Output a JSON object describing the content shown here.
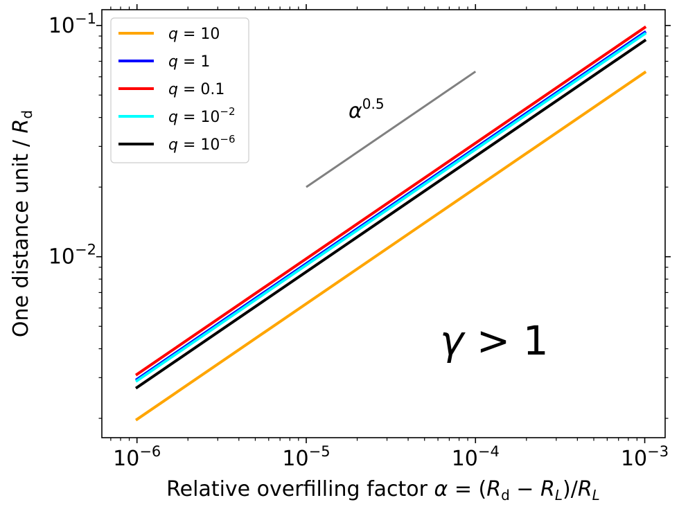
{
  "chart_data": {
    "type": "line",
    "xscale": "log",
    "yscale": "log",
    "xlim": [
      6.2e-07,
      0.00132
    ],
    "ylim": [
      0.00165,
      0.117
    ],
    "xticks": [
      {
        "value": 1e-06,
        "base": "10",
        "exp": "−6"
      },
      {
        "value": 1e-05,
        "base": "10",
        "exp": "−5"
      },
      {
        "value": 0.0001,
        "base": "10",
        "exp": "−4"
      },
      {
        "value": 0.001,
        "base": "10",
        "exp": "−3"
      }
    ],
    "yticks": [
      {
        "value": 0.01,
        "base": "10",
        "exp": "−2"
      },
      {
        "value": 0.1,
        "base": "10",
        "exp": "−1"
      }
    ],
    "xlabel": {
      "prefix": "Relative overfilling factor ",
      "alpha": "α",
      "eq": " = (",
      "R1": "R",
      "d1": "d",
      "minus": " − ",
      "R2": "R",
      "L2": "L",
      "close": ")/",
      "R3": "R",
      "L3": "L"
    },
    "ylabel": {
      "text": "One distance unit / ",
      "R": "R",
      "sub": "d"
    },
    "legend_position": "upper left",
    "series": [
      {
        "name": "q = 10",
        "legend": {
          "q": "q",
          "eq": " = ",
          "val": "10",
          "exp": ""
        },
        "color": "#ffa500",
        "x": [
          1e-06,
          0.001
        ],
        "y": [
          0.00198,
          0.0626
        ]
      },
      {
        "name": "q = 1",
        "legend": {
          "q": "q",
          "eq": " = ",
          "val": "1",
          "exp": ""
        },
        "color": "#0000ff",
        "x": [
          1e-06,
          0.001
        ],
        "y": [
          0.00295,
          0.0934
        ]
      },
      {
        "name": "q = 0.1",
        "legend": {
          "q": "q",
          "eq": " = ",
          "val": "0.1",
          "exp": ""
        },
        "color": "#ff0000",
        "x": [
          1e-06,
          0.001
        ],
        "y": [
          0.0031,
          0.098
        ]
      },
      {
        "name": "q = 10^-2",
        "legend": {
          "q": "q",
          "eq": " = ",
          "val": "10",
          "exp": "−2"
        },
        "color": "#00ffff",
        "x": [
          1e-06,
          0.001
        ],
        "y": [
          0.00291,
          0.092
        ]
      },
      {
        "name": "q = 10^-6",
        "legend": {
          "q": "q",
          "eq": " = ",
          "val": "10",
          "exp": "−6"
        },
        "color": "#000000",
        "x": [
          1e-06,
          0.001
        ],
        "y": [
          0.00272,
          0.086
        ]
      }
    ],
    "reference_line": {
      "x": [
        1e-05,
        0.0001
      ],
      "y": [
        0.02,
        0.0632
      ],
      "color": "#808080",
      "label_base": "α",
      "label_exp": "0.5"
    },
    "annotation": {
      "gamma": "γ",
      "rest": " > 1"
    }
  }
}
